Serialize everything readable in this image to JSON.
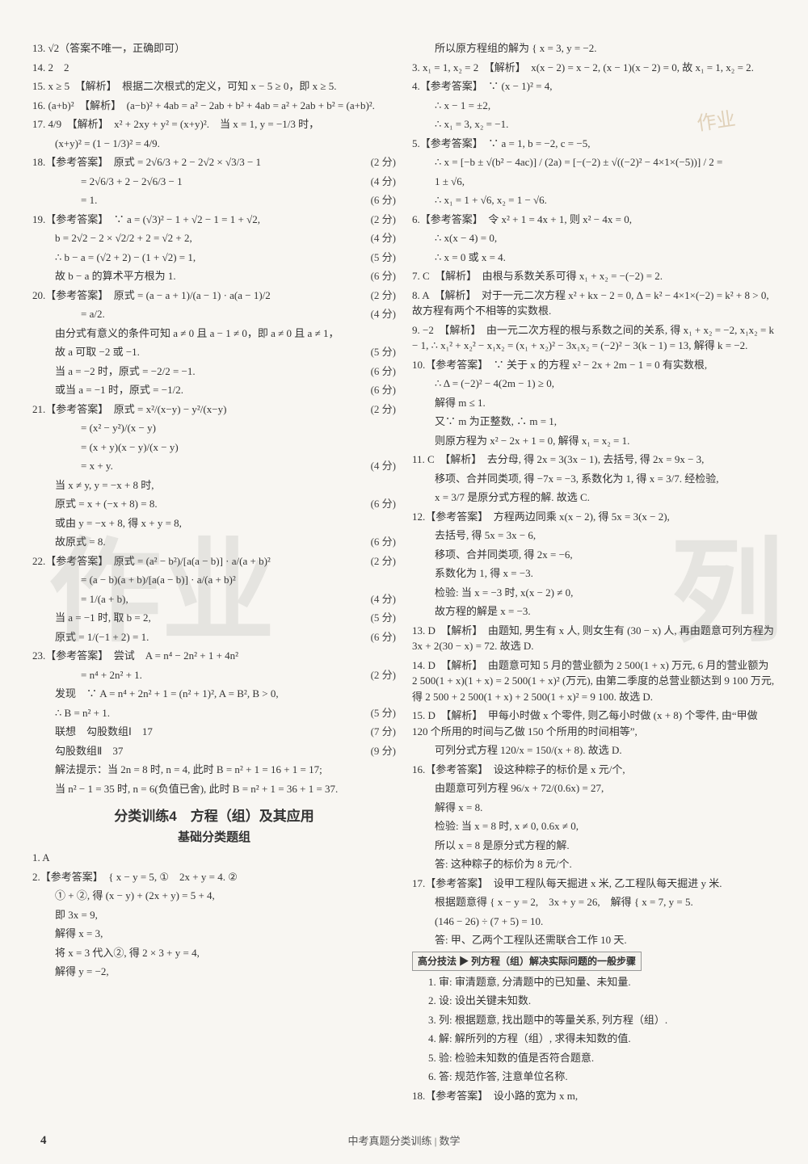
{
  "left": {
    "q13": "13. √2（答案不唯一，正确即可）",
    "q14": "14. 2　2",
    "q15": "15. x ≥ 5　【解析】　根据二次根式的定义，可知 x − 5 ≥ 0，即 x ≥ 5.",
    "q16": "16. (a+b)²　【解析】　(a−b)² + 4ab = a² − 2ab + b² + 4ab = a² + 2ab + b² = (a+b)².",
    "q17a": "17. 4/9　【解析】　x² + 2xy + y² = (x+y)².　当 x = 1, y = −1/3 时，",
    "q17b": "(x+y)² = (1 − 1/3)² = 4/9.",
    "q18a": "18.【参考答案】　原式 = 2√6/3 + 2 − 2√2 × √3/3 − 1",
    "q18b": "= 2√6/3 + 2 − 2√6/3 − 1",
    "q18c": "= 1.",
    "s18a": "(2 分)",
    "s18b": "(4 分)",
    "s18c": "(6 分)",
    "q19a": "19.【参考答案】　∵ a = (√3)² − 1 + √2 − 1 = 1 + √2,",
    "q19b": "b = 2√2 − 2 × √2/2 + 2 = √2 + 2,",
    "q19c": "∴ b − a = (√2 + 2) − (1 + √2) = 1,",
    "q19d": "故 b − a 的算术平方根为 1.",
    "s19a": "(2 分)",
    "s19b": "(4 分)",
    "s19c": "(5 分)",
    "s19d": "(6 分)",
    "q20a": "20.【参考答案】　原式 = (a − a + 1)/(a − 1) · a(a − 1)/2",
    "q20b": "= a/2.",
    "q20c": "由分式有意义的条件可知 a ≠ 0 且 a − 1 ≠ 0，即 a ≠ 0 且 a ≠ 1，",
    "q20d": "故 a 可取 −2 或 −1.",
    "q20e": "当 a = −2 时，原式 = −2/2 = −1.",
    "q20f": "或当 a = −1 时，原式 = −1/2.",
    "s20a": "(2 分)",
    "s20b": "(4 分)",
    "s20d": "(5 分)",
    "s20e": "(6 分)",
    "s20f": "(6 分)",
    "q21a": "21.【参考答案】　原式 = x²/(x−y) − y²/(x−y)",
    "q21b": "= (x² − y²)/(x − y)",
    "q21c": "= (x + y)(x − y)/(x − y)",
    "q21d": "= x + y.",
    "q21e": "当 x ≠ y, y = −x + 8 时,",
    "q21f": "原式 = x + (−x + 8) = 8.",
    "q21g": "或由 y = −x + 8, 得 x + y = 8,",
    "q21h": "故原式 = 8.",
    "s21a": "(2 分)",
    "s21d": "(4 分)",
    "s21f": "(6 分)",
    "s21h": "(6 分)",
    "q22a": "22.【参考答案】　原式 = (a² − b²)/[a(a − b)] · a/(a + b)²",
    "q22b": "= (a − b)(a + b)/[a(a − b)] · a/(a + b)²",
    "q22c": "= 1/(a + b),",
    "q22d": "当 a = −1 时, 取 b = 2,",
    "q22e": "原式 = 1/(−1 + 2) = 1.",
    "s22a": "(2 分)",
    "s22c": "(4 分)",
    "s22d": "(5 分)",
    "s22e": "(6 分)",
    "q23a": "23.【参考答案】　尝试　A = n⁴ − 2n² + 1 + 4n²",
    "q23b": "= n⁴ + 2n² + 1.",
    "q23c": "发现　∵ A = n⁴ + 2n² + 1 = (n² + 1)², A = B², B > 0,",
    "q23d": "∴ B = n² + 1.",
    "q23e": "联想　勾股数组Ⅰ　17",
    "q23f": "勾股数组Ⅱ　37",
    "q23g": "解法提示：当 2n = 8 时, n = 4, 此时 B = n² + 1 = 16 + 1 = 17;",
    "q23h": "当 n² − 1 = 35 时, n = 6(负值已舍), 此时 B = n² + 1 = 36 + 1 = 37.",
    "s23b": "(2 分)",
    "s23d": "(5 分)",
    "s23e": "(7 分)",
    "s23f": "(9 分)",
    "sec_title": "分类训练4　方程（组）及其应用",
    "sub_title": "基础分类题组",
    "p1": "1. A",
    "p2a": "2.【参考答案】　{ x − y = 5, ①　2x + y = 4. ②",
    "p2b": "① + ②, 得 (x − y) + (2x + y) = 5 + 4,",
    "p2c": "即 3x = 9,",
    "p2d": "解得 x = 3,",
    "p2e": "将 x = 3 代入②, 得 2 × 3 + y = 4,",
    "p2f": "解得 y = −2,"
  },
  "right": {
    "r2g": "所以原方程组的解为 { x = 3, y = −2.",
    "r3": "3. x₁ = 1, x₂ = 2　【解析】　x(x − 2) = x − 2, (x − 1)(x − 2) = 0, 故 x₁ = 1, x₂ = 2.",
    "r4a": "4.【参考答案】　∵ (x − 1)² = 4,",
    "r4b": "∴ x − 1 = ±2,",
    "r4c": "∴ x₁ = 3, x₂ = −1.",
    "r5a": "5.【参考答案】　∵ a = 1, b = −2, c = −5,",
    "r5b": "∴ x = [−b ± √(b² − 4ac)] / (2a) = [−(−2) ± √((−2)² − 4×1×(−5))] / 2 =",
    "r5c": "1 ± √6,",
    "r5d": "∴ x₁ = 1 + √6, x₂ = 1 − √6.",
    "r6a": "6.【参考答案】　令 x² + 1 = 4x + 1, 则 x² − 4x = 0,",
    "r6b": "∴ x(x − 4) = 0,",
    "r6c": "∴ x = 0 或 x = 4.",
    "r7": "7. C　【解析】　由根与系数关系可得 x₁ + x₂ = −(−2) = 2.",
    "r8": "8. A　【解析】　对于一元二次方程 x² + kx − 2 = 0, Δ = k² − 4×1×(−2) = k² + 8 > 0, 故方程有两个不相等的实数根.",
    "r9": "9. −2　【解析】　由一元二次方程的根与系数之间的关系, 得 x₁ + x₂ = −2, x₁x₂ = k − 1, ∴ x₁² + x₂² − x₁x₂ = (x₁ + x₂)² − 3x₁x₂ = (−2)² − 3(k − 1) = 13, 解得 k = −2.",
    "r10a": "10.【参考答案】　∵ 关于 x 的方程 x² − 2x + 2m − 1 = 0 有实数根,",
    "r10b": "∴ Δ = (−2)² − 4(2m − 1) ≥ 0,",
    "r10c": "解得 m ≤ 1.",
    "r10d": "又∵ m 为正整数, ∴ m = 1,",
    "r10e": "则原方程为 x² − 2x + 1 = 0, 解得 x₁ = x₂ = 1.",
    "r11a": "11. C　【解析】　去分母, 得 2x = 3(3x − 1), 去括号, 得 2x = 9x − 3,",
    "r11b": "移项、合并同类项, 得 −7x = −3, 系数化为 1, 得 x = 3/7. 经检验,",
    "r11c": "x = 3/7 是原分式方程的解. 故选 C.",
    "r12a": "12.【参考答案】　方程两边同乘 x(x − 2), 得 5x = 3(x − 2),",
    "r12b": "去括号, 得 5x = 3x − 6,",
    "r12c": "移项、合并同类项, 得 2x = −6,",
    "r12d": "系数化为 1, 得 x = −3.",
    "r12e": "检验: 当 x = −3 时, x(x − 2) ≠ 0,",
    "r12f": "故方程的解是 x = −3.",
    "r13": "13. D　【解析】　由题知, 男生有 x 人, 则女生有 (30 − x) 人, 再由题意可列方程为 3x + 2(30 − x) = 72. 故选 D.",
    "r14": "14. D　【解析】　由题意可知 5 月的营业额为 2 500(1 + x) 万元, 6 月的营业额为 2 500(1 + x)(1 + x) = 2 500(1 + x)² (万元), 由第二季度的总营业额达到 9 100 万元, 得 2 500 + 2 500(1 + x) + 2 500(1 + x)² = 9 100. 故选 D.",
    "r15a": "15. D　【解析】　甲每小时做 x 个零件, 则乙每小时做 (x + 8) 个零件, 由“甲做 120 个所用的时间与乙做 150 个所用的时间相等”,",
    "r15b": "可列分式方程 120/x = 150/(x + 8). 故选 D.",
    "r16a": "16.【参考答案】　设这种粽子的标价是 x 元/个,",
    "r16b": "由题意可列方程 96/x + 72/(0.6x) = 27,",
    "r16c": "解得 x = 8.",
    "r16d": "检验: 当 x = 8 时, x ≠ 0, 0.6x ≠ 0,",
    "r16e": "所以 x = 8 是原分式方程的解.",
    "r16f": "答: 这种粽子的标价为 8 元/个.",
    "r17a": "17.【参考答案】　设甲工程队每天掘进 x 米, 乙工程队每天掘进 y 米.",
    "r17b": "根据题意得 { x − y = 2,　3x + y = 26,　解得 { x = 7, y = 5.",
    "r17c": "(146 − 26) ÷ (7 + 5) = 10.",
    "r17d": "答: 甲、乙两个工程队还需联合工作 10 天.",
    "tip": "高分技法 ▶ 列方程（组）解决实际问题的一般步骤",
    "step1": "1. 审: 审清题意, 分清题中的已知量、未知量.",
    "step2": "2. 设: 设出关键未知数.",
    "step3": "3. 列: 根据题意, 找出题中的等量关系, 列方程（组）.",
    "step4": "4. 解: 解所列的方程（组）, 求得未知数的值.",
    "step5": "5. 验: 检验未知数的值是否符合题意.",
    "step6": "6. 答: 规范作答, 注意单位名称.",
    "r18": "18.【参考答案】　设小路的宽为 x m,"
  },
  "footer": "中考真题分类训练 | 数学",
  "page_num": "4",
  "wm1": "作业",
  "wm2": "列",
  "stamp": "作业"
}
